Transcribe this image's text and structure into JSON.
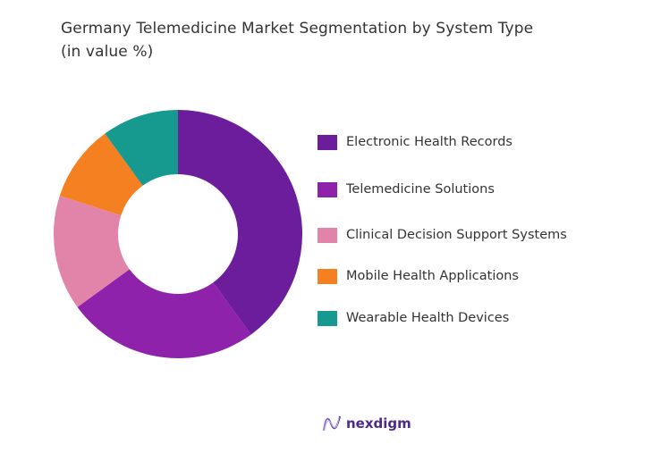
{
  "title": {
    "line1": "Germany Telemedicine Market Segmentation by System Type",
    "line2": "(in value %)"
  },
  "brand": {
    "name": "nexdigm",
    "icon": "nexdigm-wave-logo-icon"
  },
  "chart_data": {
    "type": "pie",
    "variant": "donut",
    "title": "Germany Telemedicine Market Segmentation by System Type (in value %)",
    "categories": [
      "Electronic Health Records",
      "Telemedicine Solutions",
      "Clinical Decision Support Systems",
      "Mobile Health Applications",
      "Wearable Health Devices"
    ],
    "values": [
      40,
      25,
      15,
      10,
      10
    ],
    "colors": [
      "#6C1D9C",
      "#8E22AA",
      "#E283A9",
      "#F58021",
      "#16998E"
    ],
    "unit": "%",
    "legend_position": "right",
    "start_angle_deg": 0,
    "direction": "clockwise"
  }
}
